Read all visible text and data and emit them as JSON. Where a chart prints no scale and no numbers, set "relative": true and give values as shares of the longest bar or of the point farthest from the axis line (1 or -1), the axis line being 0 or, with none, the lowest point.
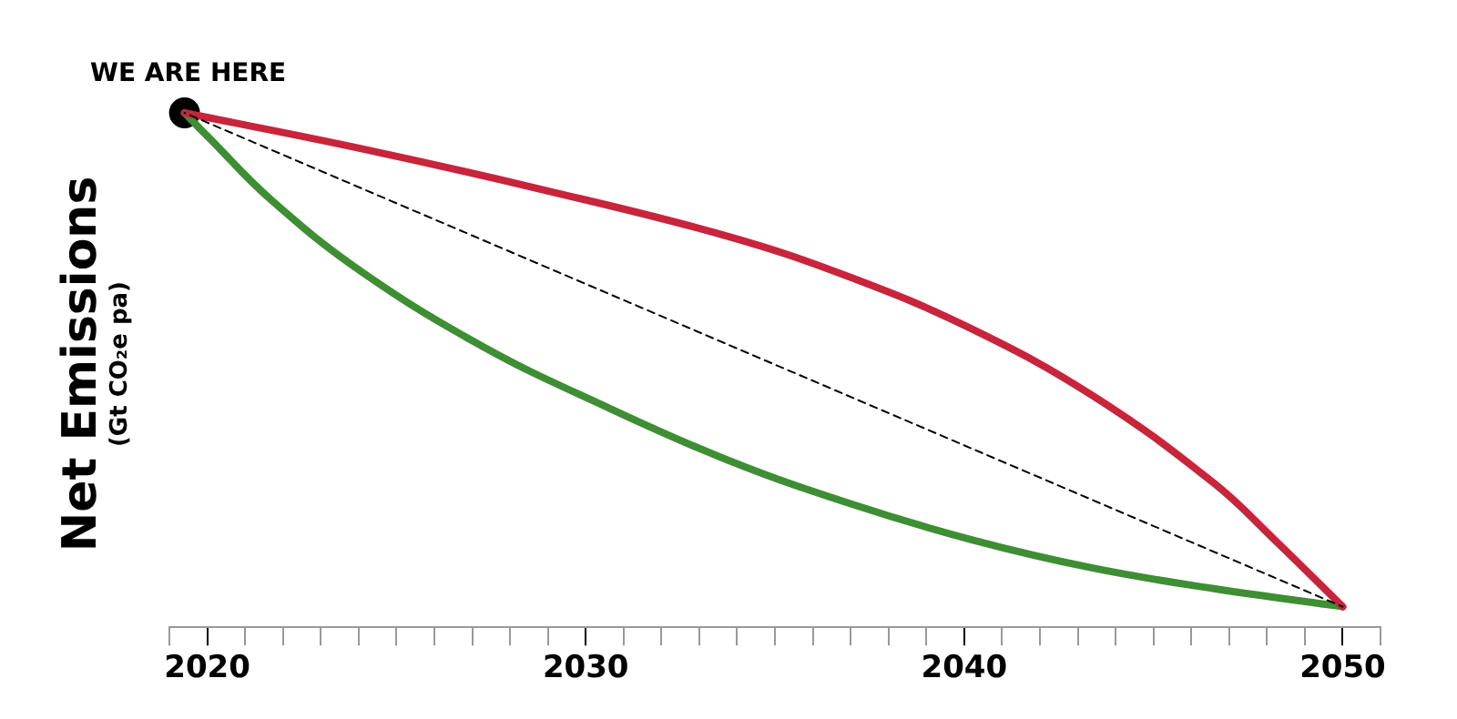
{
  "chart_data": {
    "type": "line",
    "relative": true,
    "xlabel": null,
    "ylabel": "Net Emissions",
    "subtitle": "(Gt CO₂e pa)",
    "xlim": [
      2019,
      2051
    ],
    "xticks": [
      {
        "value": 2019,
        "label": null
      },
      {
        "value": 2020,
        "label": "2020"
      },
      {
        "value": 2021,
        "label": null
      },
      {
        "value": 2022,
        "label": null
      },
      {
        "value": 2023,
        "label": null
      },
      {
        "value": 2024,
        "label": null
      },
      {
        "value": 2025,
        "label": null
      },
      {
        "value": 2026,
        "label": null
      },
      {
        "value": 2027,
        "label": null
      },
      {
        "value": 2028,
        "label": null
      },
      {
        "value": 2029,
        "label": null
      },
      {
        "value": 2030,
        "label": "2030"
      },
      {
        "value": 2031,
        "label": null
      },
      {
        "value": 2032,
        "label": null
      },
      {
        "value": 2033,
        "label": null
      },
      {
        "value": 2034,
        "label": null
      },
      {
        "value": 2035,
        "label": null
      },
      {
        "value": 2036,
        "label": null
      },
      {
        "value": 2037,
        "label": null
      },
      {
        "value": 2038,
        "label": null
      },
      {
        "value": 2039,
        "label": null
      },
      {
        "value": 2040,
        "label": "2040"
      },
      {
        "value": 2041,
        "label": null
      },
      {
        "value": 2042,
        "label": null
      },
      {
        "value": 2043,
        "label": null
      },
      {
        "value": 2044,
        "label": null
      },
      {
        "value": 2045,
        "label": null
      },
      {
        "value": 2046,
        "label": null
      },
      {
        "value": 2047,
        "label": null
      },
      {
        "value": 2048,
        "label": null
      },
      {
        "value": 2049,
        "label": null
      },
      {
        "value": 2050,
        "label": "2050"
      },
      {
        "value": 2051,
        "label": null
      }
    ],
    "grid": false,
    "marker": "none",
    "series": [
      {
        "type": "line",
        "color": "#c8243c",
        "x": [
          2019.4,
          2024.1,
          2028.9,
          2033.75,
          2037,
          2040.2,
          2043.4,
          2046.6,
          2048.2,
          2050
        ],
        "values": [
          1,
          0.93,
          0.85,
          0.76,
          0.68,
          0.58,
          0.45,
          0.28,
          0.17,
          0.04
        ]
      },
      {
        "type": "line",
        "color": "#3e8e33",
        "x": [
          2019.4,
          2020,
          2021.7,
          2024.1,
          2027.3,
          2030.5,
          2033.75,
          2037,
          2040.2,
          2043.4,
          2046.6,
          2050
        ],
        "values": [
          1,
          0.955,
          0.83,
          0.69,
          0.545,
          0.43,
          0.325,
          0.24,
          0.17,
          0.115,
          0.075,
          0.04
        ]
      },
      {
        "color": "#000000",
        "line_style": "dashed",
        "x": [
          2019.4,
          2050
        ],
        "values": [
          1,
          0.04
        ]
      },
      {
        "type": "scatter",
        "color": "#000000",
        "marker": "circle",
        "x": [
          2019.4
        ],
        "values": [
          1
        ]
      }
    ],
    "annotations": [
      {
        "text": "WE ARE HERE",
        "x": 2019.4,
        "y": 1
      }
    ]
  }
}
